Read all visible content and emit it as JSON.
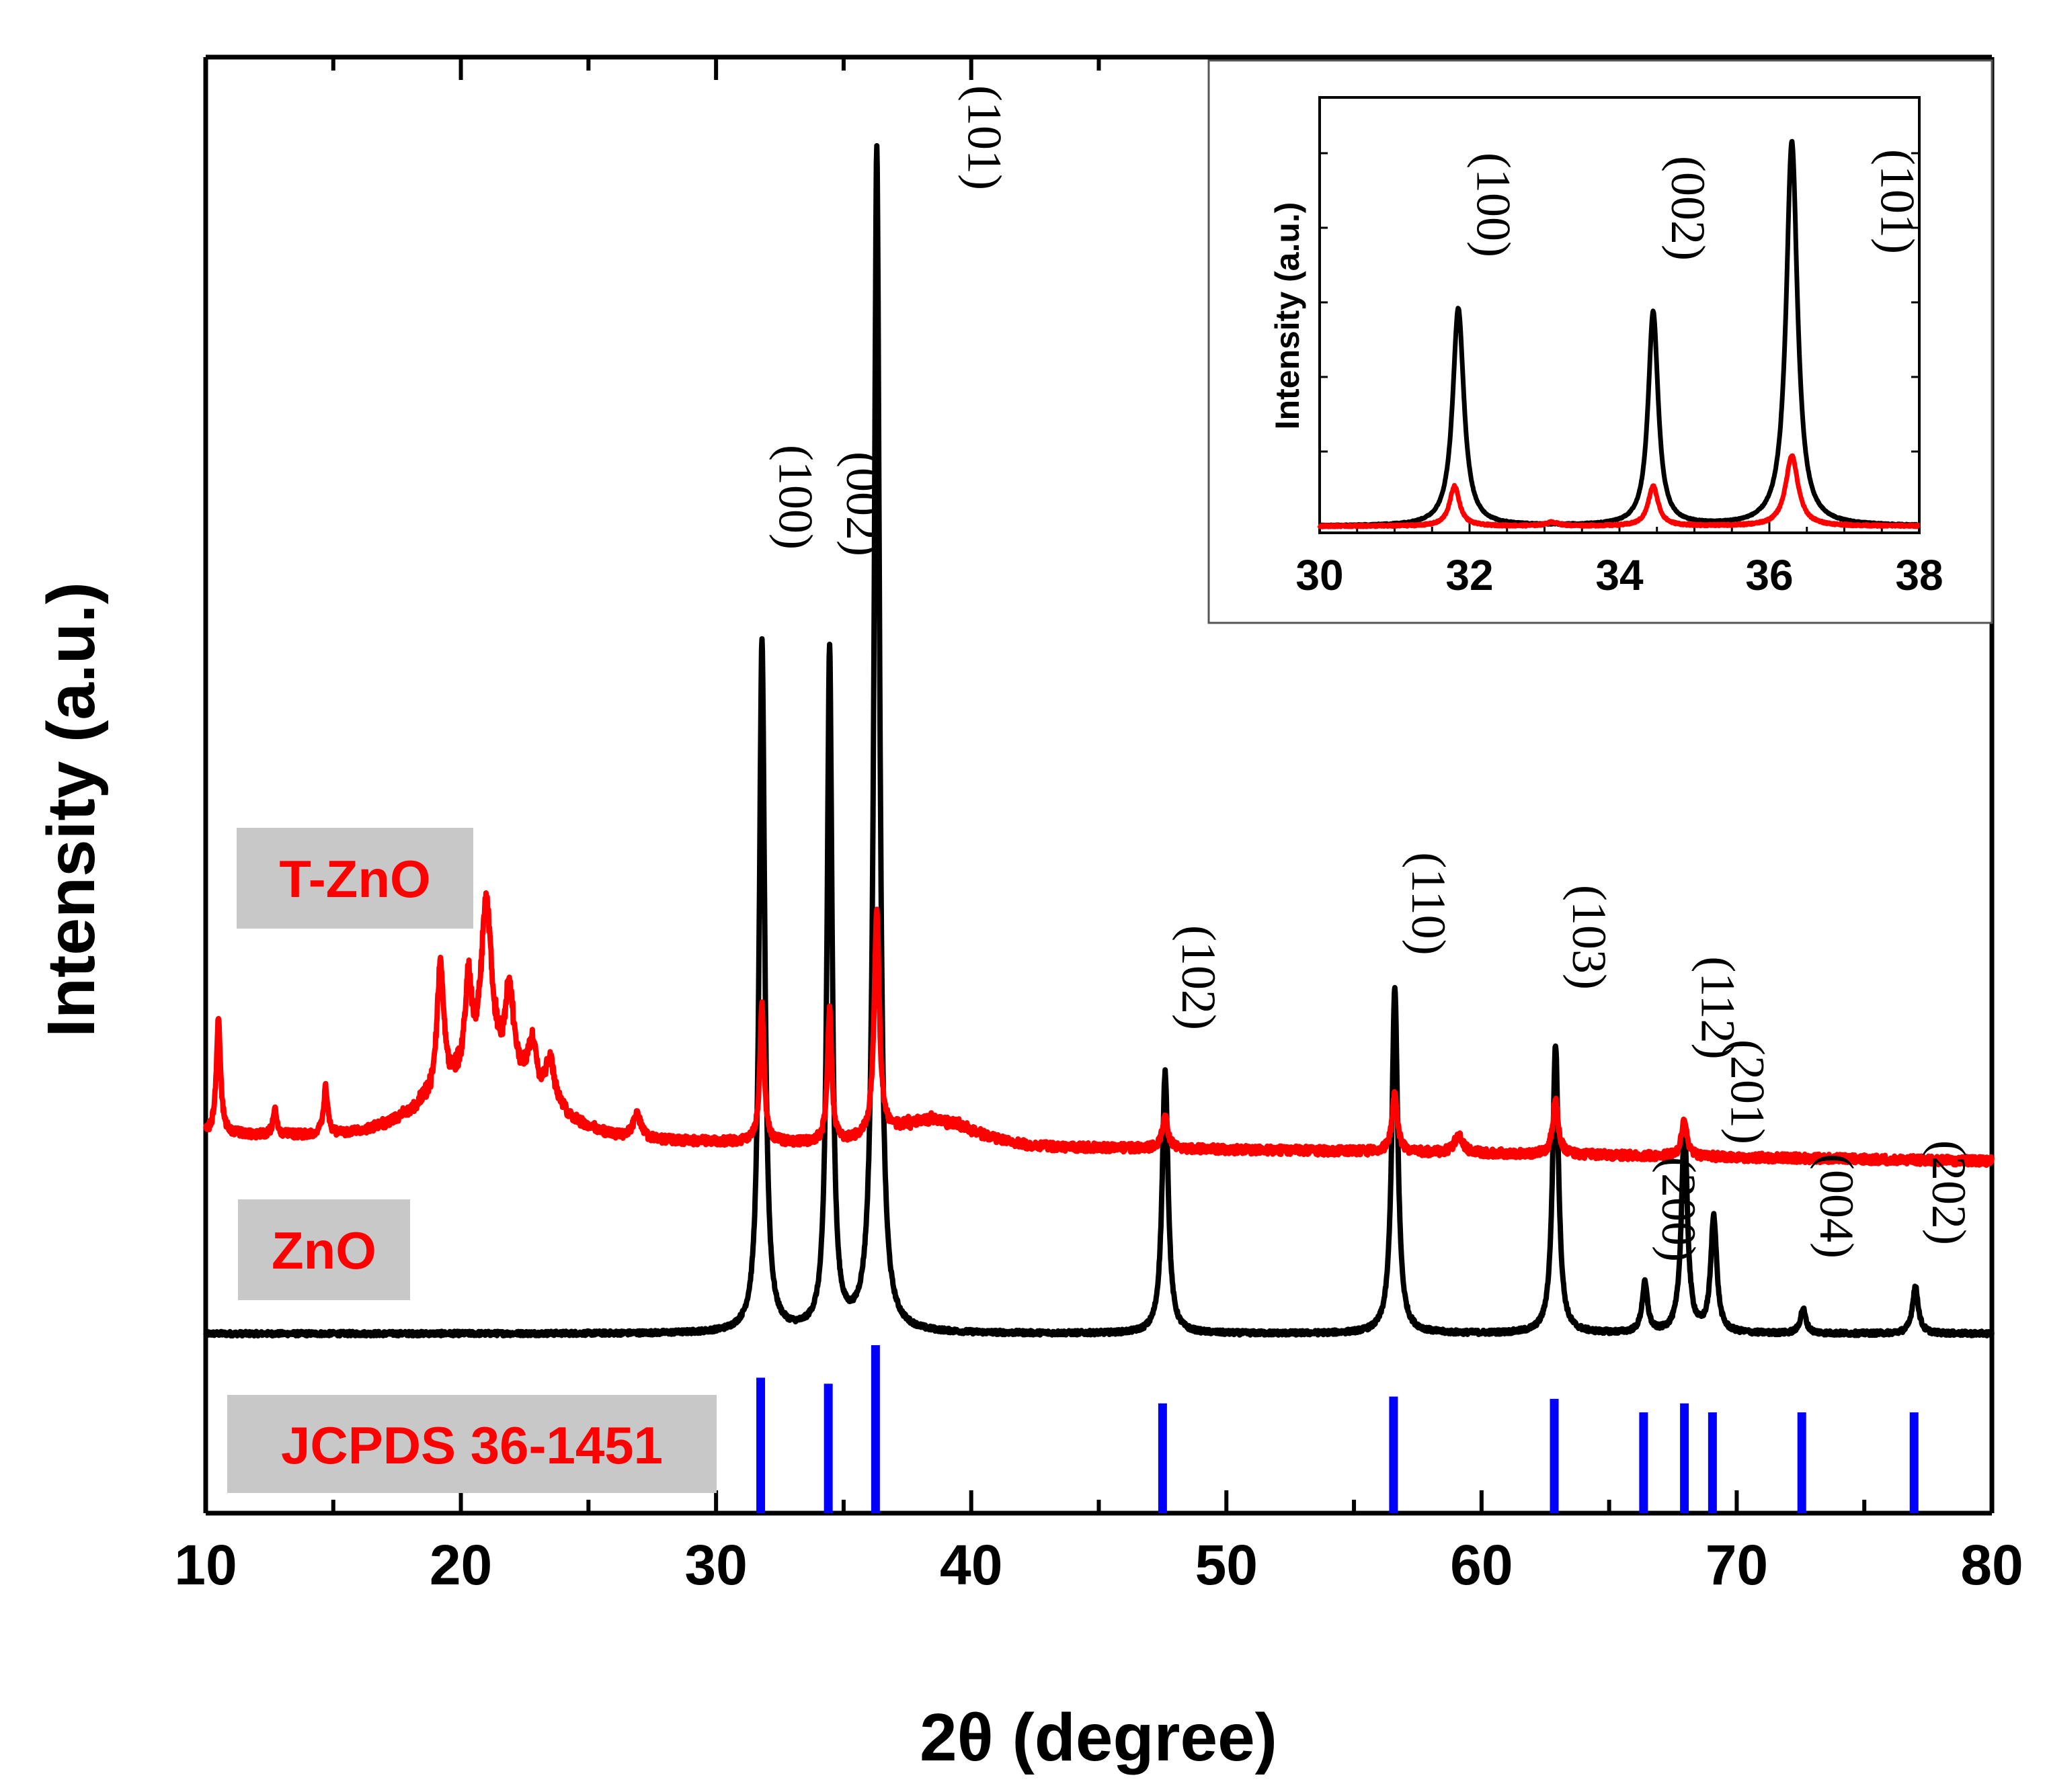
{
  "chart_data": {
    "type": "line",
    "title": "",
    "xlabel": "2θ (degree)",
    "ylabel": "Intensity (a.u.)",
    "xlim": [
      10,
      80
    ],
    "xticks": [
      "10",
      "20",
      "30",
      "40",
      "50",
      "60",
      "70",
      "80"
    ],
    "yticks": [],
    "colors": {
      "ZnO": "#000000",
      "T-ZnO": "#ff0000",
      "JCPDS": "#0000ff",
      "legend_box": "#c8c8c8"
    },
    "legend": [
      {
        "label": "T-ZnO",
        "color": "#ff0000"
      },
      {
        "label": "ZnO",
        "color": "#ff0000"
      },
      {
        "label": "JCPDS 36-1451",
        "color": "#ff0000"
      }
    ],
    "series": [
      {
        "name": "ZnO",
        "color": "#000000",
        "baseline": 1.0,
        "peaks": [
          {
            "x": 31.8,
            "h": 28.0,
            "w": 0.13
          },
          {
            "x": 34.45,
            "h": 27.6,
            "w": 0.12
          },
          {
            "x": 36.3,
            "h": 48.0,
            "w": 0.13
          },
          {
            "x": 47.6,
            "h": 10.6,
            "w": 0.14
          },
          {
            "x": 56.6,
            "h": 14.0,
            "w": 0.14
          },
          {
            "x": 62.9,
            "h": 11.7,
            "w": 0.14
          },
          {
            "x": 66.4,
            "h": 2.0,
            "w": 0.13
          },
          {
            "x": 67.95,
            "h": 8.4,
            "w": 0.14
          },
          {
            "x": 69.1,
            "h": 4.7,
            "w": 0.14
          },
          {
            "x": 72.6,
            "h": 1.0,
            "w": 0.13
          },
          {
            "x": 77.0,
            "h": 1.9,
            "w": 0.14
          }
        ]
      },
      {
        "name": "T-ZnO",
        "color": "#ff0000",
        "baseline_start": 9.1,
        "baseline_end": 8.0,
        "peaks": [
          {
            "x": 10.5,
            "h": 4.6,
            "w": 0.1
          },
          {
            "x": 12.7,
            "h": 1.1,
            "w": 0.08
          },
          {
            "x": 14.7,
            "h": 1.9,
            "w": 0.1
          },
          {
            "x": 19.2,
            "h": 5.2,
            "w": 0.15
          },
          {
            "x": 20.3,
            "h": 3.7,
            "w": 0.15
          },
          {
            "x": 21.0,
            "h": 6.8,
            "w": 0.25
          },
          {
            "x": 21.9,
            "h": 3.4,
            "w": 0.2
          },
          {
            "x": 22.8,
            "h": 2.0,
            "w": 0.2
          },
          {
            "x": 23.5,
            "h": 1.8,
            "w": 0.2
          },
          {
            "x": 26.9,
            "h": 1.0,
            "w": 0.18
          },
          {
            "x": 31.8,
            "h": 5.5,
            "w": 0.1
          },
          {
            "x": 34.45,
            "h": 5.3,
            "w": 0.1
          },
          {
            "x": 36.3,
            "h": 9.0,
            "w": 0.12
          },
          {
            "x": 47.6,
            "h": 1.3,
            "w": 0.13
          },
          {
            "x": 56.6,
            "h": 2.3,
            "w": 0.13
          },
          {
            "x": 59.1,
            "h": 0.7,
            "w": 0.2
          },
          {
            "x": 62.9,
            "h": 2.2,
            "w": 0.13
          },
          {
            "x": 67.95,
            "h": 1.5,
            "w": 0.13
          }
        ],
        "humps": [
          {
            "x": 21.0,
            "h": 2.5,
            "w": 2.2
          },
          {
            "x": 38.5,
            "h": 1.0,
            "w": 1.6
          }
        ]
      }
    ],
    "reference_lines": {
      "name": "JCPDS 36-1451",
      "color": "#0000ff",
      "positions": [
        31.75,
        34.4,
        36.25,
        47.5,
        56.55,
        62.85,
        66.35,
        67.95,
        69.05,
        72.55,
        76.95
      ],
      "relative_intensities": [
        57,
        49,
        100,
        23,
        32,
        29,
        4,
        23,
        11,
        2,
        4
      ]
    },
    "annotations": [
      {
        "text": "(100)",
        "x": 31.8
      },
      {
        "text": "(002)",
        "x": 34.45
      },
      {
        "text": "(101)",
        "x": 36.3
      },
      {
        "text": "(102)",
        "x": 47.6
      },
      {
        "text": "(110)",
        "x": 56.6
      },
      {
        "text": "(103)",
        "x": 62.9
      },
      {
        "text": "(200)",
        "x": 66.4
      },
      {
        "text": "(112)",
        "x": 67.95
      },
      {
        "text": "(201)",
        "x": 69.1
      },
      {
        "text": "(004)",
        "x": 72.6
      },
      {
        "text": "(202)",
        "x": 77.0
      }
    ],
    "inset": {
      "type": "line",
      "xlabel": "",
      "ylabel": "Intensity (a.u.)",
      "xlim": [
        30,
        38
      ],
      "xticks": [
        "30",
        "32",
        "34",
        "36",
        "38"
      ],
      "series": [
        {
          "name": "ZnO",
          "color": "#000000",
          "baseline": 1.0,
          "peaks": [
            {
              "x": 31.85,
              "h": 30.0,
              "w": 0.09
            },
            {
              "x": 34.45,
              "h": 29.5,
              "w": 0.08
            },
            {
              "x": 36.3,
              "h": 53.0,
              "w": 0.09
            }
          ]
        },
        {
          "name": "T-ZnO",
          "color": "#ff0000",
          "baseline": 1.0,
          "peaks": [
            {
              "x": 31.8,
              "h": 5.5,
              "w": 0.08
            },
            {
              "x": 33.1,
              "h": 0.5,
              "w": 0.1
            },
            {
              "x": 34.45,
              "h": 5.5,
              "w": 0.08
            },
            {
              "x": 36.3,
              "h": 9.7,
              "w": 0.1
            }
          ]
        }
      ],
      "annotations": [
        {
          "text": "(100)",
          "x": 31.85
        },
        {
          "text": "(002)",
          "x": 34.45
        },
        {
          "text": "(101)",
          "x": 36.3
        }
      ]
    }
  }
}
